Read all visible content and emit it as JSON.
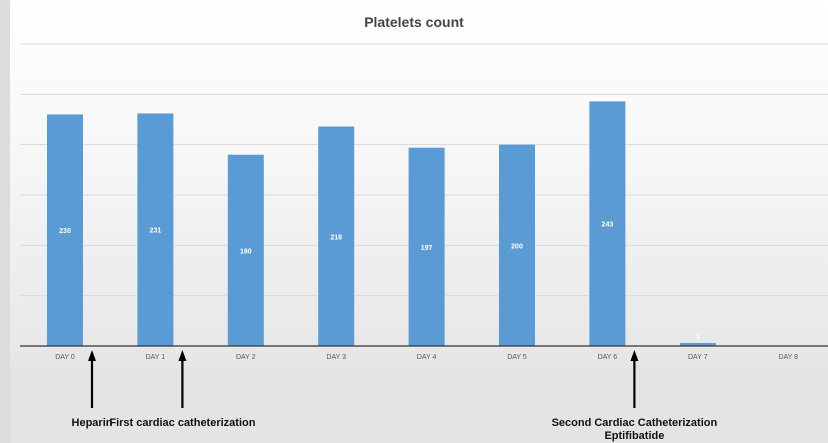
{
  "chart_data": {
    "type": "bar",
    "title": "Platelets count",
    "categories": [
      "DAY 0",
      "DAY 1",
      "DAY 2",
      "DAY 3",
      "DAY 4",
      "DAY 5",
      "DAY 6",
      "DAY 7",
      "DAY 8"
    ],
    "values": [
      230,
      231,
      190,
      218,
      197,
      200,
      243,
      3,
      null
    ],
    "data_labels": [
      "230",
      "231",
      "190",
      "218",
      "197",
      "200",
      "243",
      "3",
      ""
    ],
    "xlabel": "",
    "ylabel": "",
    "ylim": [
      0,
      300
    ],
    "grid": true,
    "bar_color": "#5b9bd5",
    "annotations": [
      {
        "label": "Heparin",
        "category": "DAY 0",
        "side": "right"
      },
      {
        "label": "First cardiac catheterization",
        "category": "DAY 1",
        "side": "right"
      },
      {
        "label": "Second Cardiac Catheterization\nEptifibatide",
        "category": "DAY 6",
        "side": "right"
      }
    ]
  }
}
